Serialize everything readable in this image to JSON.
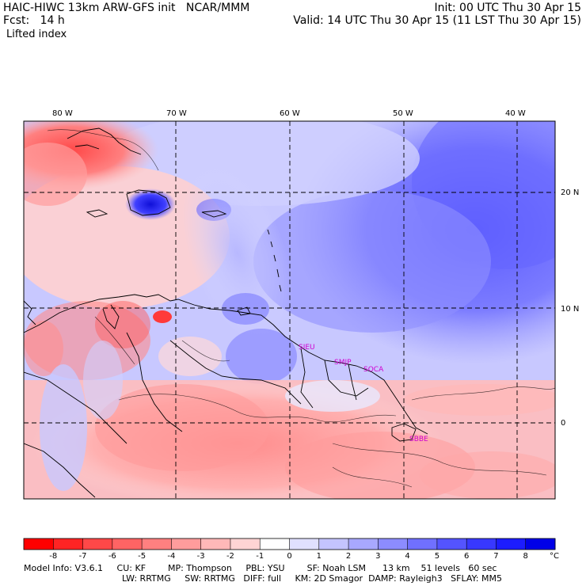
{
  "header": {
    "title_left": "HAIC-HIWC 13km ARW-GFS init   NCAR/MMM",
    "fcst_left": "Fcst:   14 h",
    "init_right": "Init: 00 UTC Thu 30 Apr 15",
    "valid_right": "Valid: 14 UTC Thu 30 Apr 15 (11 LST Thu 30 Apr 15)",
    "field_name": "Lifted index"
  },
  "map": {
    "lon_labels": [
      "80 W",
      "70 W",
      "60 W",
      "50 W",
      "40 W"
    ],
    "lat_labels": [
      "20 N",
      "10 N",
      "0"
    ],
    "stations": [
      "SIEU",
      "SMJP",
      "SOCA",
      "SBBE"
    ]
  },
  "colorbar": {
    "ticks": [
      "-8",
      "-7",
      "-6",
      "-5",
      "-4",
      "-3",
      "-2",
      "-1",
      "0",
      "1",
      "2",
      "3",
      "4",
      "5",
      "6",
      "7",
      "8"
    ],
    "unit": "°C",
    "colors": [
      "#ff0000",
      "#ff2424",
      "#ff4848",
      "#ff6464",
      "#ff8080",
      "#ff9c9c",
      "#ffb8b8",
      "#ffd4d4",
      "#ffffff",
      "#e0e0ff",
      "#c4c4ff",
      "#a8a8ff",
      "#8c8cff",
      "#7070ff",
      "#5454ff",
      "#3838ff",
      "#1c1cff",
      "#0000e8"
    ]
  },
  "footer": {
    "line1": "Model Info: V3.6.1     CU: KF        MP: Thompson     PBL: YSU        SF: Noah LSM      13 km    51 levels   60 sec",
    "line2": "LW: RRTMG     SW: RRTMG   DIFF: full     KM: 2D Smagor  DAMP: Rayleigh3   SFLAY: MM5"
  }
}
